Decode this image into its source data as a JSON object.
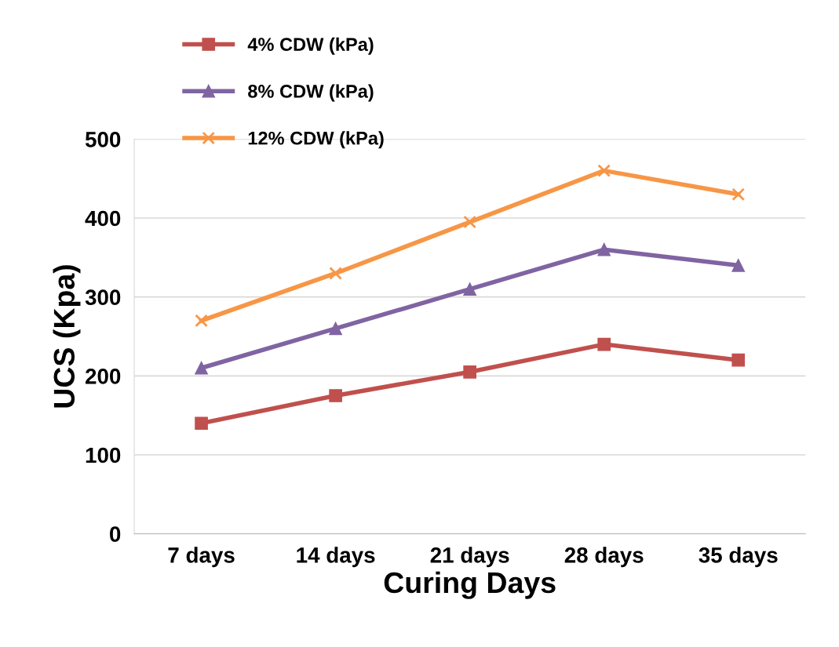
{
  "chart_data": {
    "type": "line",
    "xlabel": "Curing Days",
    "ylabel": "UCS (Kpa)",
    "categories": [
      "7 days",
      "14 days",
      "21 days",
      "28 days",
      "35 days"
    ],
    "series": [
      {
        "name": "4% CDW (kPa)",
        "color": "#c0504d",
        "marker": "square",
        "values": [
          140,
          175,
          205,
          240,
          220
        ]
      },
      {
        "name": "8% CDW (kPa)",
        "color": "#8064a2",
        "marker": "triangle",
        "values": [
          210,
          260,
          310,
          360,
          340
        ]
      },
      {
        "name": "12% CDW (kPa)",
        "color": "#f79646",
        "marker": "cross",
        "values": [
          270,
          330,
          395,
          460,
          430
        ]
      }
    ],
    "ylim": [
      0,
      500
    ],
    "yticks": [
      0,
      100,
      200,
      300,
      400,
      500
    ],
    "grid": "y",
    "legend": "top left",
    "line_style": "solid"
  }
}
